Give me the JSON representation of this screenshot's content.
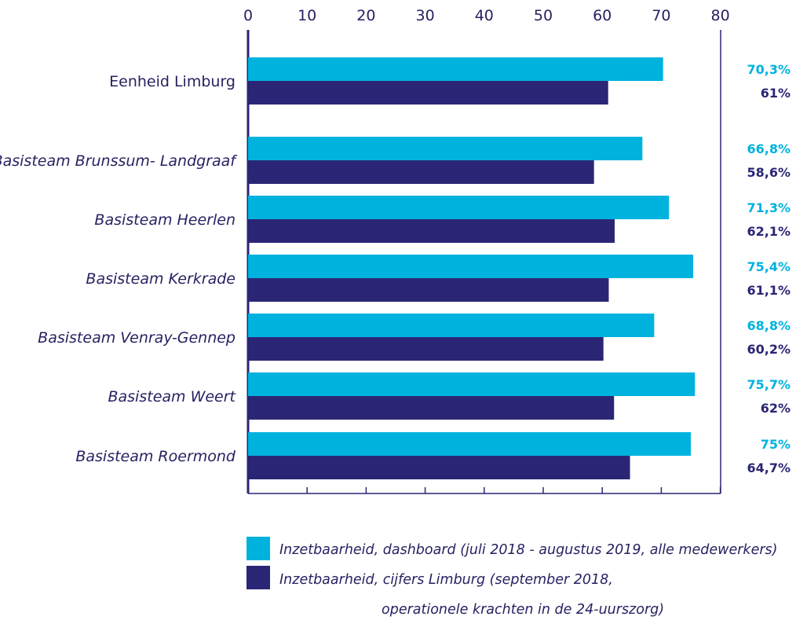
{
  "colors": {
    "series1": "#00b2de",
    "series2": "#2a2675",
    "text": "#262262",
    "axis": "#2a2675"
  },
  "chart_data": {
    "type": "bar",
    "orientation": "horizontal",
    "title": "",
    "xlabel": "",
    "ylabel": "",
    "xlim": [
      0,
      80
    ],
    "x_ticks": [
      0,
      10,
      20,
      30,
      40,
      50,
      60,
      70,
      80
    ],
    "x_axis_position": "top",
    "grid": false,
    "legend_position": "bottom",
    "categories": [
      "Eenheid Limburg",
      "Basisteam Brunssum- Landgraaf",
      "Basisteam Heerlen",
      "Basisteam Kerkrade",
      "Basisteam Venray-Gennep",
      "Basisteam Weert",
      "Basisteam Roermond"
    ],
    "category_italic": [
      false,
      true,
      true,
      true,
      true,
      true,
      true
    ],
    "series": [
      {
        "name": "Inzetbaarheid, dashboard (juli 2018 - augustus 2019, alle medewerkers)",
        "values": [
          70.3,
          66.8,
          71.3,
          75.4,
          68.8,
          75.7,
          75
        ],
        "value_labels": [
          "70,3%",
          "66,8%",
          "71,3%",
          "75,4%",
          "68,8%",
          "75,7%",
          "75%"
        ]
      },
      {
        "name": "Inzetbaarheid, cijfers Limburg (september 2018, operationele krachten in de 24-uurszorg)",
        "values": [
          61,
          58.6,
          62.1,
          61.1,
          60.2,
          62,
          64.7
        ],
        "value_labels": [
          "61%",
          "58,6%",
          "62,1%",
          "61,1%",
          "60,2%",
          "62%",
          "64,7%"
        ]
      }
    ],
    "legend": [
      {
        "lines": [
          "Inzetbaarheid, dashboard (juli 2018 - augustus 2019, alle medewerkers)"
        ]
      },
      {
        "lines": [
          "Inzetbaarheid, cijfers Limburg (september 2018,",
          "operationele krachten in de 24-uurszorg)"
        ]
      }
    ]
  }
}
